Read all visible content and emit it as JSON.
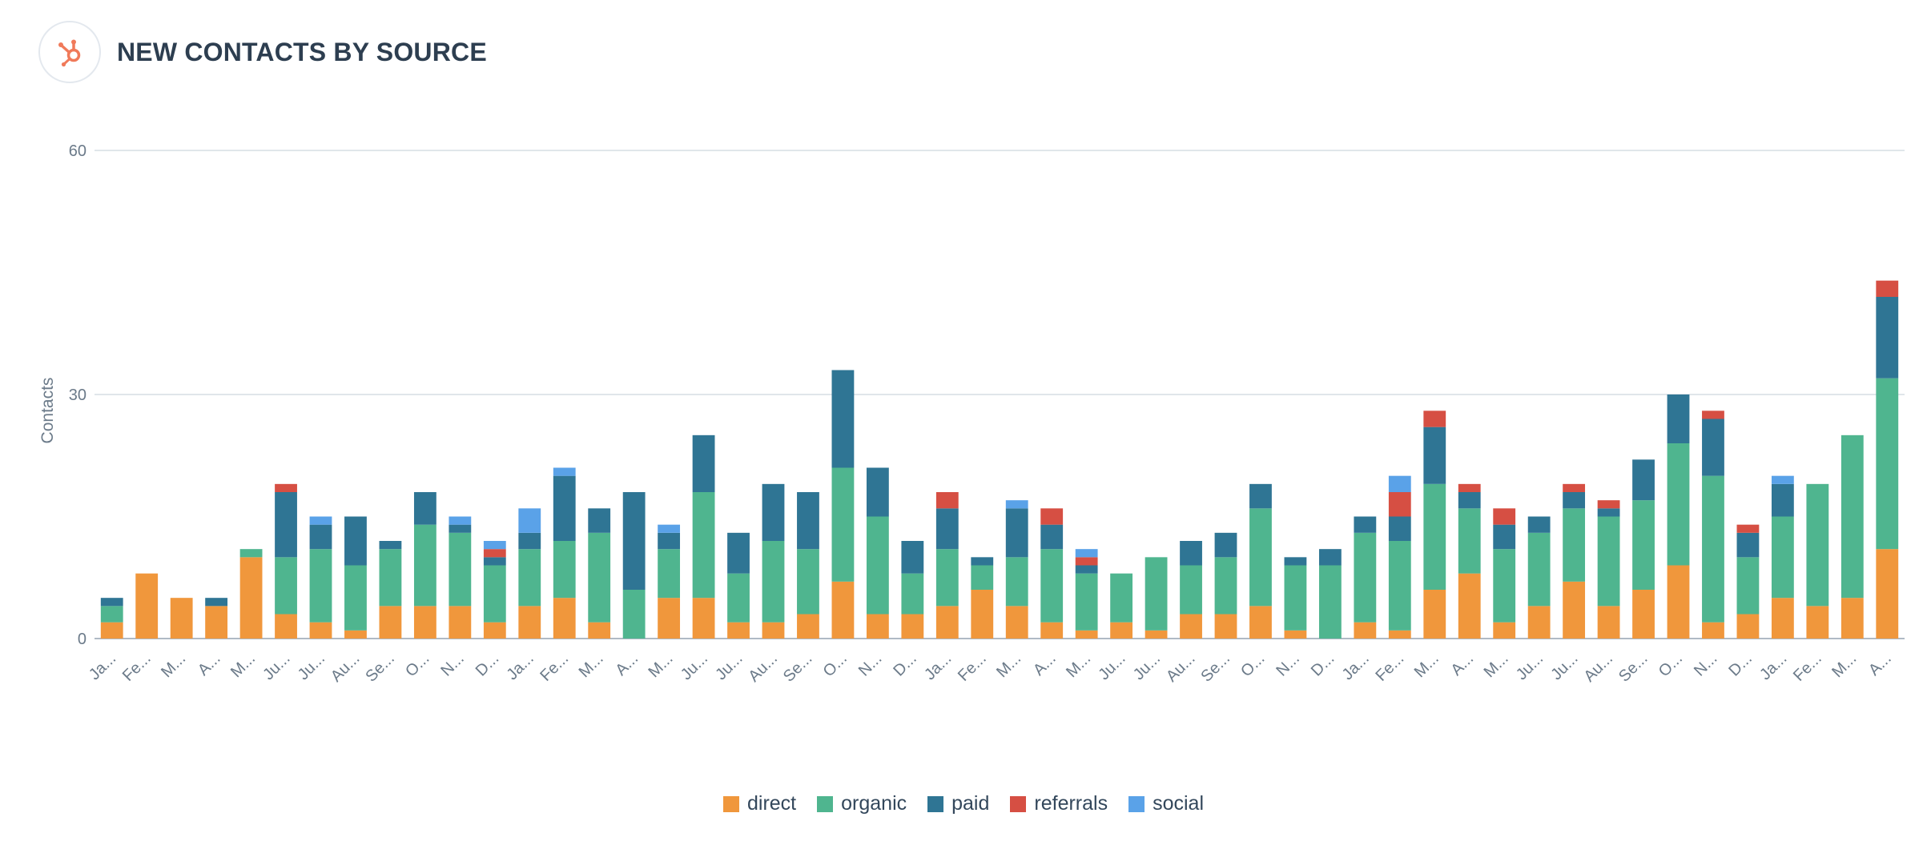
{
  "header": {
    "title": "NEW CONTACTS BY SOURCE",
    "logo_icon": "hubspot-sprocket-icon"
  },
  "chart_data": {
    "type": "bar",
    "stacked": true,
    "ylabel": "Contacts",
    "xlabel": "",
    "ylim": [
      0,
      60
    ],
    "yticks": [
      0,
      30,
      60
    ],
    "grid": true,
    "legend_position": "bottom-center",
    "categories": [
      "Ja...",
      "Fe...",
      "M...",
      "A...",
      "M...",
      "Ju...",
      "Ju...",
      "Au...",
      "Se...",
      "O...",
      "N...",
      "D...",
      "Ja...",
      "Fe...",
      "M...",
      "A...",
      "M...",
      "Ju...",
      "Ju...",
      "Au...",
      "Se...",
      "O...",
      "N...",
      "D...",
      "Ja...",
      "Fe...",
      "M...",
      "A...",
      "M...",
      "Ju...",
      "Ju...",
      "Au...",
      "Se...",
      "O...",
      "N...",
      "D...",
      "Ja...",
      "Fe...",
      "M...",
      "A...",
      "M...",
      "Ju...",
      "Ju...",
      "Au...",
      "Se...",
      "O...",
      "N...",
      "D...",
      "Ja...",
      "Fe...",
      "M...",
      "A..."
    ],
    "series": [
      {
        "name": "direct",
        "color": "#f0973c",
        "values": [
          2,
          8,
          5,
          4,
          10,
          3,
          2,
          1,
          4,
          4,
          4,
          2,
          4,
          5,
          2,
          0,
          5,
          5,
          2,
          2,
          3,
          7,
          3,
          3,
          4,
          6,
          4,
          2,
          1,
          2,
          1,
          3,
          3,
          4,
          1,
          0,
          2,
          1,
          6,
          8,
          2,
          4,
          7,
          4,
          6,
          9,
          2,
          3,
          5,
          4,
          5,
          11
        ]
      },
      {
        "name": "organic",
        "color": "#4fb58f",
        "values": [
          2,
          0,
          0,
          0,
          1,
          7,
          9,
          8,
          7,
          10,
          9,
          7,
          7,
          7,
          11,
          6,
          6,
          13,
          6,
          10,
          8,
          14,
          12,
          5,
          7,
          3,
          6,
          9,
          7,
          6,
          9,
          6,
          7,
          12,
          8,
          9,
          11,
          11,
          13,
          8,
          9,
          9,
          9,
          11,
          11,
          15,
          18,
          7,
          10,
          15,
          20,
          21
        ]
      },
      {
        "name": "paid",
        "color": "#2f7594",
        "values": [
          1,
          0,
          0,
          1,
          0,
          8,
          3,
          6,
          1,
          4,
          1,
          1,
          2,
          8,
          3,
          12,
          2,
          7,
          5,
          7,
          7,
          12,
          6,
          4,
          5,
          1,
          6,
          3,
          1,
          0,
          0,
          3,
          3,
          3,
          1,
          2,
          2,
          3,
          7,
          2,
          3,
          2,
          2,
          1,
          5,
          6,
          7,
          3,
          4,
          0,
          0,
          10
        ]
      },
      {
        "name": "referrals",
        "color": "#d64f43",
        "values": [
          0,
          0,
          0,
          0,
          0,
          1,
          0,
          0,
          0,
          0,
          0,
          1,
          0,
          0,
          0,
          0,
          0,
          0,
          0,
          0,
          0,
          0,
          0,
          0,
          2,
          0,
          0,
          2,
          1,
          0,
          0,
          0,
          0,
          0,
          0,
          0,
          0,
          3,
          2,
          1,
          2,
          0,
          1,
          1,
          0,
          0,
          1,
          1,
          0,
          0,
          0,
          2
        ]
      },
      {
        "name": "social",
        "color": "#5aa2e8",
        "values": [
          0,
          0,
          0,
          0,
          0,
          0,
          1,
          0,
          0,
          0,
          1,
          1,
          3,
          1,
          0,
          0,
          1,
          0,
          0,
          0,
          0,
          0,
          0,
          0,
          0,
          0,
          1,
          0,
          1,
          0,
          0,
          0,
          0,
          0,
          0,
          0,
          0,
          2,
          0,
          0,
          0,
          0,
          0,
          0,
          0,
          0,
          0,
          0,
          1,
          0,
          0,
          0
        ]
      }
    ]
  }
}
